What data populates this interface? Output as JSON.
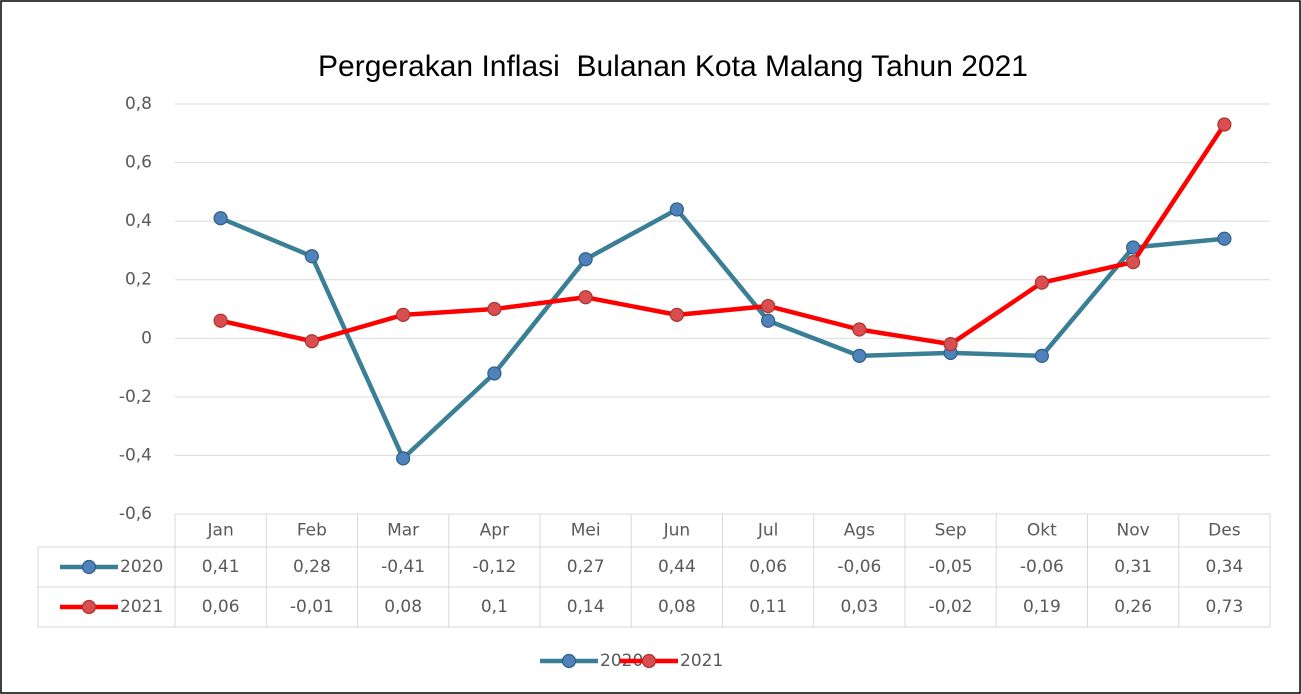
{
  "chart_data": {
    "type": "line",
    "title": "Pergerakan Inflasi  Bulanan Kota Malang Tahun 2021",
    "categories": [
      "Jan",
      "Feb",
      "Mar",
      "Apr",
      "Mei",
      "Jun",
      "Jul",
      "Ags",
      "Sep",
      "Okt",
      "Nov",
      "Des"
    ],
    "series": [
      {
        "name": "2020",
        "color": "#3a7f96",
        "marker_color": "#4f81bd",
        "values": [
          0.41,
          0.28,
          -0.41,
          -0.12,
          0.27,
          0.44,
          0.06,
          -0.06,
          -0.05,
          -0.06,
          0.31,
          0.34
        ],
        "value_labels": [
          "0,41",
          "0,28",
          "-0,41",
          "-0,12",
          "0,27",
          "0,44",
          "0,06",
          "-0,06",
          "-0,05",
          "-0,06",
          "0,31",
          "0,34"
        ]
      },
      {
        "name": "2021",
        "color": "#ff0000",
        "marker_color": "#d94f4f",
        "values": [
          0.06,
          -0.01,
          0.08,
          0.1,
          0.14,
          0.08,
          0.11,
          0.03,
          -0.02,
          0.19,
          0.26,
          0.73
        ],
        "value_labels": [
          "0,06",
          "-0,01",
          "0,08",
          "0,1",
          "0,14",
          "0,08",
          "0,11",
          "0,03",
          "-0,02",
          "0,19",
          "0,26",
          "0,73"
        ]
      }
    ],
    "ylim": [
      -0.6,
      0.8
    ],
    "yticks": [
      {
        "value": -0.6,
        "label": "-0,6"
      },
      {
        "value": -0.4,
        "label": "-0,4"
      },
      {
        "value": -0.2,
        "label": "-0,2"
      },
      0,
      {
        "value": 0.2,
        "label": "0,2"
      },
      {
        "value": 0.4,
        "label": "0,4"
      },
      {
        "value": 0.6,
        "label": "0,6"
      },
      {
        "value": 0.8,
        "label": "0,8"
      }
    ],
    "grid": true,
    "legend": "bottom"
  }
}
